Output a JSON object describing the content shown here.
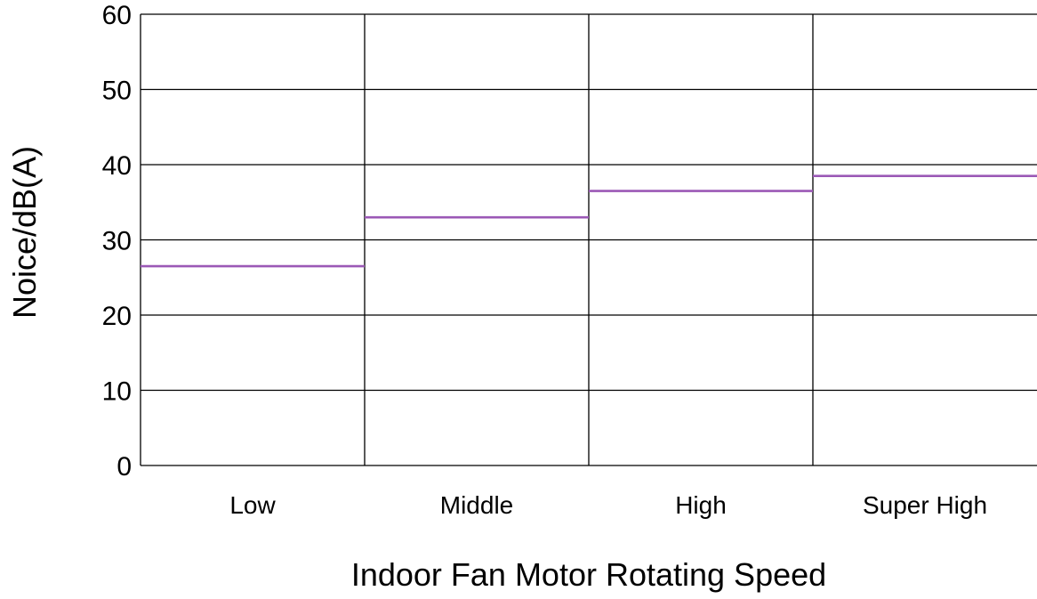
{
  "chart_data": {
    "type": "line",
    "title": "",
    "xlabel": "Indoor Fan Motor Rotating Speed",
    "ylabel": "Noice/dB(A)",
    "categories": [
      "Low",
      "Middle",
      "High",
      "Super High"
    ],
    "series": [
      {
        "values": [
          26.5,
          33.0,
          36.5,
          38.5
        ]
      }
    ],
    "ylim": [
      0,
      60
    ],
    "yticks": [
      "0",
      "10",
      "20",
      "30",
      "40",
      "50",
      "60"
    ],
    "grid": true,
    "legend": "none",
    "colors": {
      "series": "#9b59b6",
      "grid": "#000000"
    }
  }
}
